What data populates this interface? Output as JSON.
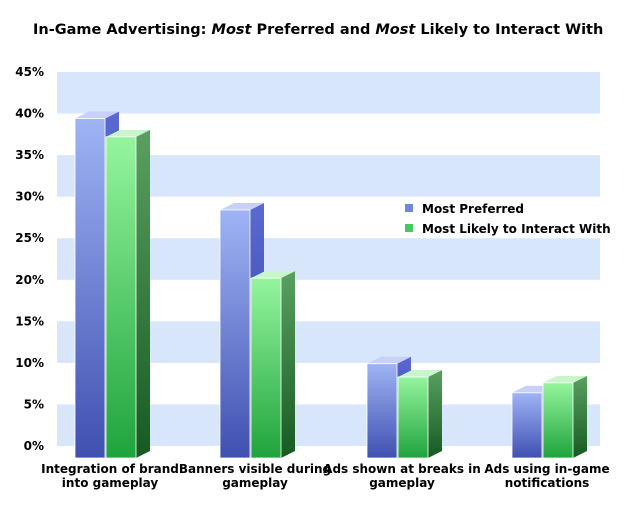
{
  "chart_data": {
    "type": "bar",
    "title_parts": [
      "In-Game Advertising: ",
      "Most",
      " Preferred and ",
      "Most",
      " Likely to Interact With"
    ],
    "categories": [
      [
        "Integration of brand",
        "into gameplay"
      ],
      [
        "Banners visible during",
        "gameplay"
      ],
      [
        "Ads shown at breaks in",
        "gameplay"
      ],
      [
        "Ads using in-game",
        "notifications"
      ]
    ],
    "series": [
      {
        "name": "Most Preferred",
        "values": [
          39.4,
          28.4,
          9.9,
          6.4
        ],
        "color": "#6f86e0"
      },
      {
        "name": "Most Likely to Interact With",
        "values": [
          37.2,
          20.2,
          8.3,
          7.6
        ],
        "color": "#45c95c"
      }
    ],
    "ylim": [
      0,
      45
    ],
    "yticks": [
      "0%",
      "5%",
      "10%",
      "15%",
      "20%",
      "25%",
      "30%",
      "35%",
      "40%",
      "45%"
    ],
    "grid": "alternating horizontal bands",
    "band_color": "#d8e6fb",
    "legend_position": "upper-right"
  }
}
